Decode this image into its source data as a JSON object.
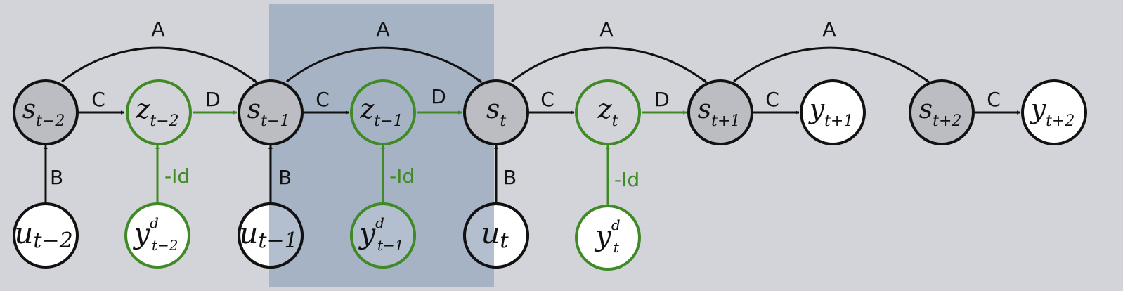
{
  "colors": {
    "background": "#d3d4d9",
    "highlight": "#a6b3c5",
    "black": "#111111",
    "green": "#3f8a24",
    "state_fill": "#bcbdc3",
    "white_fill": "#ffffff"
  },
  "edge_labels": {
    "A": "A",
    "B": "B",
    "C": "C",
    "D": "D",
    "neg_id": "-Id"
  },
  "nodes": {
    "s_t-2": {
      "main": "s",
      "sub": "t−2"
    },
    "z_t-2": {
      "main": "z",
      "sub": "t−2"
    },
    "s_t-1": {
      "main": "s",
      "sub": "t−1"
    },
    "z_t-1": {
      "main": "z",
      "sub": "t−1"
    },
    "s_t": {
      "main": "s",
      "sub": "t"
    },
    "z_t": {
      "main": "z",
      "sub": "t"
    },
    "s_t+1": {
      "main": "s",
      "sub": "t+1"
    },
    "y_t+1": {
      "main": "y",
      "sub": "t+1"
    },
    "s_t+2": {
      "main": "s",
      "sub": "t+2"
    },
    "y_t+2": {
      "main": "y",
      "sub": "t+2"
    },
    "u_t-2": {
      "main": "u",
      "sub": "t−2"
    },
    "yd_t-2": {
      "main": "y",
      "sub": "t−2",
      "sup": "d"
    },
    "u_t-1": {
      "main": "u",
      "sub": "t−1"
    },
    "yd_t-1": {
      "main": "y",
      "sub": "t−1",
      "sup": "d"
    },
    "u_t": {
      "main": "u",
      "sub": "t"
    },
    "yd_t": {
      "main": "y",
      "sub": "t",
      "sup": "d"
    }
  }
}
